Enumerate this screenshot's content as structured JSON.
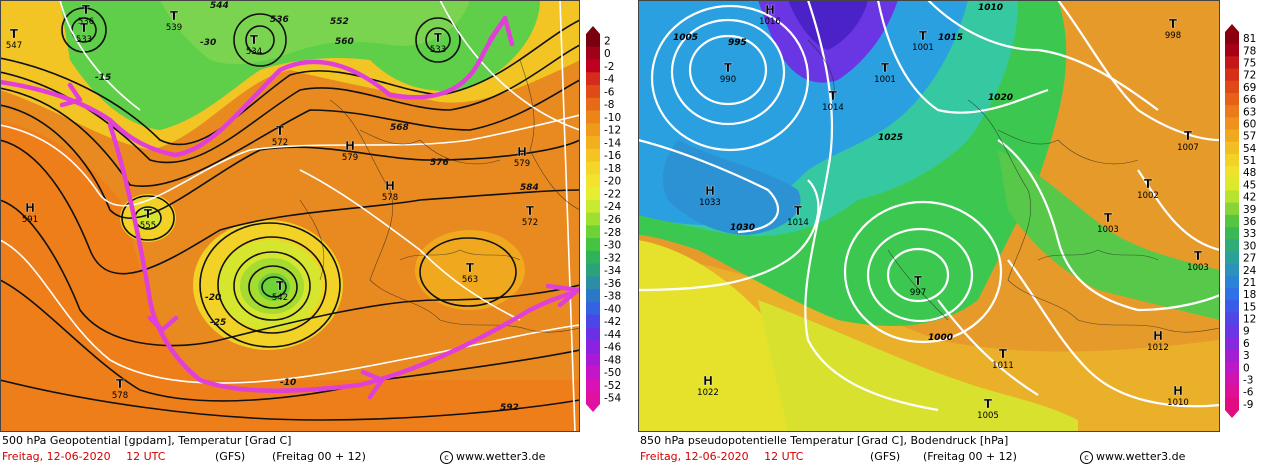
{
  "left_panel": {
    "caption_line1": "500 hPa Geopotential [gpdam], Temperatur [Grad C]",
    "date": "Freitag, 12-06-2020",
    "time": "12 UTC",
    "model": "(GFS)",
    "run": "(Freitag 00 + 12)",
    "copyright": "www.wetter3.de",
    "colors": {
      "warm": "#e88a1f",
      "mid": "#f0a020",
      "green": "#5fcf4a",
      "yellow": "#f4ec2a",
      "arrow": "#e040d8"
    },
    "scale": [
      "2",
      "0",
      "-2",
      "-4",
      "-6",
      "-8",
      "-10",
      "-12",
      "-14",
      "-16",
      "-18",
      "-20",
      "-22",
      "-24",
      "-26",
      "-28",
      "-30",
      "-32",
      "-34",
      "-36",
      "-38",
      "-40",
      "-42",
      "-44",
      "-46",
      "-48",
      "-50",
      "-52",
      "-54"
    ],
    "scale_colors": [
      "#7a0010",
      "#a00018",
      "#c00020",
      "#d62a1a",
      "#e04a16",
      "#e86a16",
      "#ec8418",
      "#f09a1c",
      "#f2b01e",
      "#f4c424",
      "#f4d62a",
      "#f2e42e",
      "#e6ee30",
      "#c8ea30",
      "#9ee030",
      "#6cd236",
      "#44c440",
      "#2eb35a",
      "#2ca27a",
      "#2c8ea4",
      "#2c78c8",
      "#3462e0",
      "#4a46e8",
      "#6a30e6",
      "#8a22e0",
      "#a81ad6",
      "#c416c8",
      "#d812b4",
      "#e010a0"
    ],
    "labels": [
      {
        "t": "T",
        "sub": "547"
      },
      {
        "t": "T",
        "sub": "536"
      },
      {
        "t": "T",
        "sub": "533"
      },
      {
        "t": "T",
        "sub": "539"
      },
      {
        "t": "T",
        "sub": "534"
      },
      {
        "t": "T",
        "sub": "533"
      },
      {
        "t": "H",
        "sub": "591"
      },
      {
        "t": "T",
        "sub": "555"
      },
      {
        "t": "T",
        "sub": "542"
      },
      {
        "t": "T",
        "sub": "572"
      },
      {
        "t": "H",
        "sub": "579"
      },
      {
        "t": "H",
        "sub": "578"
      },
      {
        "t": "H",
        "sub": "579"
      },
      {
        "t": "T",
        "sub": "572"
      },
      {
        "t": "T",
        "sub": "563"
      },
      {
        "t": "T",
        "sub": "578"
      }
    ],
    "isolines": [
      "544",
      "536",
      "552",
      "560",
      "568",
      "576",
      "584",
      "592",
      "-15",
      "-20",
      "-25",
      "-30",
      "-10"
    ]
  },
  "right_panel": {
    "caption_line1": "850 hPa pseudopotentielle Temperatur [Grad C], Bodendruck [hPa]",
    "date": "Freitag, 12-06-2020",
    "time": "12 UTC",
    "model": "(GFS)",
    "run": "(Freitag 00 + 12)",
    "copyright": "www.wetter3.de",
    "colors": {
      "blue": "#2aa0e0",
      "cyan": "#36c8c0",
      "green": "#3cc850",
      "yellow": "#e6e22c",
      "orange": "#e69a2a"
    },
    "scale": [
      "81",
      "78",
      "75",
      "72",
      "69",
      "66",
      "63",
      "60",
      "57",
      "54",
      "51",
      "48",
      "45",
      "42",
      "39",
      "36",
      "33",
      "30",
      "27",
      "24",
      "21",
      "18",
      "15",
      "12",
      "9",
      "6",
      "3",
      "0",
      "-3",
      "-6",
      "-9"
    ],
    "scale_colors": [
      "#8a0010",
      "#a80014",
      "#c41818",
      "#d43018",
      "#e04818",
      "#e66018",
      "#ea7a1a",
      "#ee921c",
      "#f0a81e",
      "#f2be22",
      "#f2d226",
      "#f0e22a",
      "#dcea2c",
      "#b6e230",
      "#86d436",
      "#56c640",
      "#3ab856",
      "#30ac78",
      "#2ca09a",
      "#2c92ba",
      "#2c82d4",
      "#3070e6",
      "#3c5ae8",
      "#5046e8",
      "#6a36e4",
      "#8628dc",
      "#a21ed2",
      "#bc18c4",
      "#d014b0",
      "#de1098",
      "#e00c80"
    ],
    "labels": [
      {
        "t": "H",
        "sub": "1016"
      },
      {
        "t": "T",
        "sub": "990"
      },
      {
        "t": "T",
        "sub": "1001"
      },
      {
        "t": "T",
        "sub": "1001"
      },
      {
        "t": "T",
        "sub": "1014"
      },
      {
        "t": "H",
        "sub": "1033"
      },
      {
        "t": "T",
        "sub": "1014"
      },
      {
        "t": "T",
        "sub": "997"
      },
      {
        "t": "T",
        "sub": "998"
      },
      {
        "t": "T",
        "sub": "1007"
      },
      {
        "t": "T",
        "sub": "1002"
      },
      {
        "t": "T",
        "sub": "1003"
      },
      {
        "t": "T",
        "sub": "1003"
      },
      {
        "t": "H",
        "sub": "1012"
      },
      {
        "t": "T",
        "sub": "1011"
      },
      {
        "t": "H",
        "sub": "1022"
      },
      {
        "t": "H",
        "sub": "1010"
      },
      {
        "t": "T",
        "sub": "1005"
      }
    ],
    "isobars": [
      "1005",
      "1010",
      "1015",
      "1020",
      "1025",
      "1030",
      "1000",
      "995"
    ]
  }
}
